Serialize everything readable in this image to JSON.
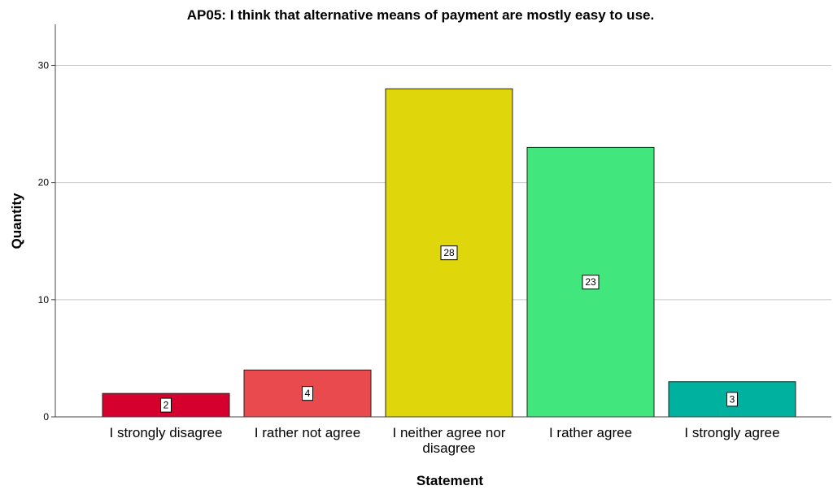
{
  "chart_data": {
    "type": "bar",
    "title": "AP05: I think that alternative means of payment are mostly easy to use.",
    "xlabel": "Statement",
    "ylabel": "Quantity",
    "categories": [
      "I strongly disagree",
      "I rather not agree",
      "I neither agree nor disagree",
      "I rather agree",
      "I strongly agree"
    ],
    "category_lines": [
      [
        "I strongly disagree"
      ],
      [
        "I rather not agree"
      ],
      [
        "I neither agree nor",
        "disagree"
      ],
      [
        "I rather agree"
      ],
      [
        "I strongly agree"
      ]
    ],
    "values": [
      2,
      4,
      28,
      23,
      3
    ],
    "colors": [
      "#d6002f",
      "#e84a4d",
      "#e0d60c",
      "#41e67c",
      "#00b1a0"
    ],
    "ylim": [
      0,
      33.5
    ],
    "yticks": [
      0,
      10,
      20,
      30
    ],
    "grid": true,
    "data_labels": true
  }
}
